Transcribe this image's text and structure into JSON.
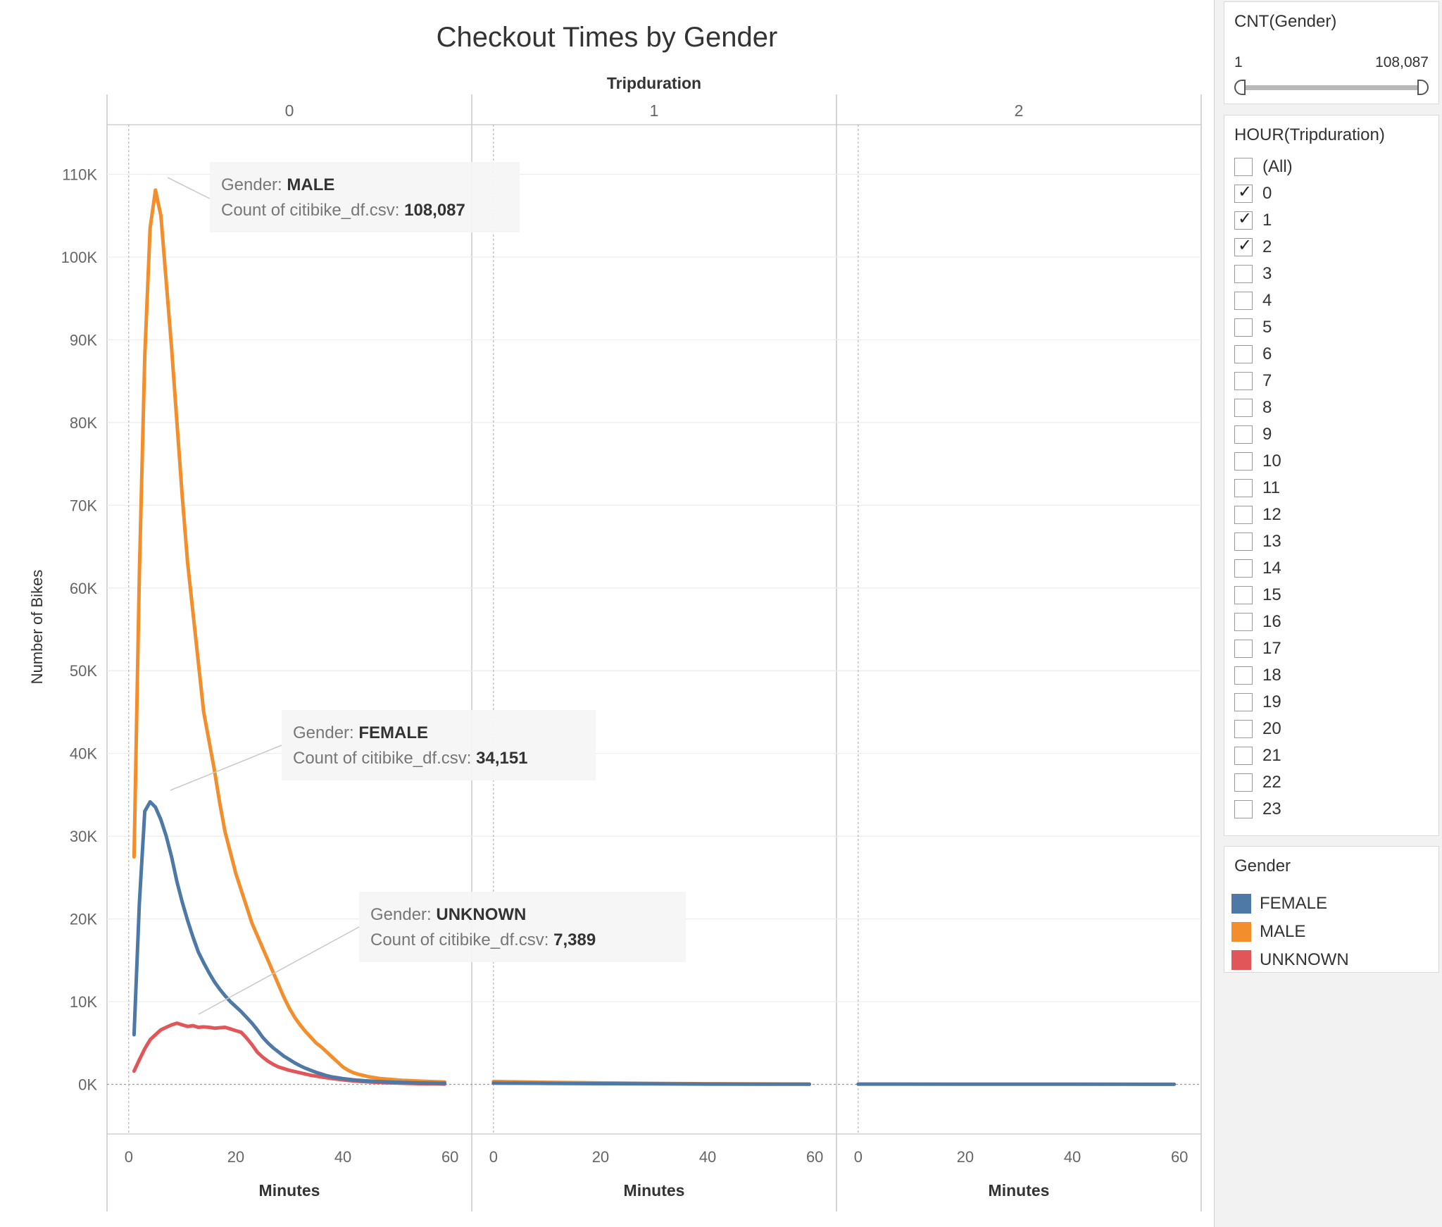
{
  "title": "Checkout Times by Gender",
  "column_header": "Tripduration",
  "yaxis_label": "Number of Bikes",
  "colors": {
    "FEMALE": "#4e79a7",
    "MALE": "#f28e2b",
    "UNKNOWN": "#e15759"
  },
  "chart_data": {
    "type": "line",
    "title": "Checkout Times by Gender",
    "facet_field": "Tripduration",
    "facets": [
      "0",
      "1",
      "2"
    ],
    "xlabel": "Minutes",
    "ylabel": "Number of Bikes",
    "xlim": [
      -3,
      63
    ],
    "xticks": [
      0,
      20,
      40,
      60
    ],
    "ylim": [
      -6000,
      116000
    ],
    "yticks": [
      0,
      10000,
      20000,
      30000,
      40000,
      50000,
      60000,
      70000,
      80000,
      90000,
      100000,
      110000
    ],
    "ytick_labels": [
      "0K",
      "10K",
      "20K",
      "30K",
      "40K",
      "50K",
      "60K",
      "70K",
      "80K",
      "90K",
      "100K",
      "110K"
    ],
    "grid": true,
    "series": [
      {
        "name": "MALE",
        "facet": "0",
        "points": [
          [
            1,
            27500
          ],
          [
            2,
            62000
          ],
          [
            3,
            88000
          ],
          [
            4,
            103500
          ],
          [
            5,
            108087
          ],
          [
            6,
            105000
          ],
          [
            7,
            97000
          ],
          [
            8,
            89000
          ],
          [
            9,
            80000
          ],
          [
            10,
            71000
          ],
          [
            11,
            63000
          ],
          [
            12,
            57000
          ],
          [
            13,
            51000
          ],
          [
            14,
            45000
          ],
          [
            15,
            41500
          ],
          [
            16,
            38000
          ],
          [
            17,
            34000
          ],
          [
            18,
            30500
          ],
          [
            19,
            28000
          ],
          [
            20,
            25500
          ],
          [
            21,
            23500
          ],
          [
            22,
            21500
          ],
          [
            23,
            19500
          ],
          [
            24,
            18000
          ],
          [
            25,
            16500
          ],
          [
            26,
            15000
          ],
          [
            27,
            13500
          ],
          [
            28,
            12000
          ],
          [
            29,
            10500
          ],
          [
            30,
            9200
          ],
          [
            31,
            8100
          ],
          [
            32,
            7200
          ],
          [
            33,
            6400
          ],
          [
            34,
            5700
          ],
          [
            35,
            5000
          ],
          [
            36,
            4500
          ],
          [
            37,
            3900
          ],
          [
            38,
            3300
          ],
          [
            39,
            2700
          ],
          [
            40,
            2100
          ],
          [
            41,
            1700
          ],
          [
            42,
            1400
          ],
          [
            43,
            1200
          ],
          [
            44,
            1050
          ],
          [
            45,
            900
          ],
          [
            46,
            800
          ],
          [
            47,
            700
          ],
          [
            48,
            650
          ],
          [
            49,
            600
          ],
          [
            50,
            550
          ],
          [
            51,
            500
          ],
          [
            52,
            470
          ],
          [
            53,
            440
          ],
          [
            54,
            410
          ],
          [
            55,
            380
          ],
          [
            56,
            350
          ],
          [
            57,
            330
          ],
          [
            58,
            310
          ],
          [
            59,
            290
          ]
        ]
      },
      {
        "name": "FEMALE",
        "facet": "0",
        "points": [
          [
            1,
            6000
          ],
          [
            2,
            22000
          ],
          [
            3,
            33000
          ],
          [
            4,
            34151
          ],
          [
            5,
            33500
          ],
          [
            6,
            32000
          ],
          [
            7,
            30000
          ],
          [
            8,
            27500
          ],
          [
            9,
            24500
          ],
          [
            10,
            22000
          ],
          [
            11,
            19800
          ],
          [
            12,
            17800
          ],
          [
            13,
            16000
          ],
          [
            14,
            14700
          ],
          [
            15,
            13500
          ],
          [
            16,
            12400
          ],
          [
            17,
            11500
          ],
          [
            18,
            10700
          ],
          [
            19,
            10000
          ],
          [
            20,
            9400
          ],
          [
            21,
            8800
          ],
          [
            22,
            8100
          ],
          [
            23,
            7400
          ],
          [
            24,
            6600
          ],
          [
            25,
            5700
          ],
          [
            26,
            5000
          ],
          [
            27,
            4400
          ],
          [
            28,
            3900
          ],
          [
            29,
            3400
          ],
          [
            30,
            3000
          ],
          [
            31,
            2600
          ],
          [
            32,
            2250
          ],
          [
            33,
            1950
          ],
          [
            34,
            1700
          ],
          [
            35,
            1450
          ],
          [
            36,
            1250
          ],
          [
            37,
            1050
          ],
          [
            38,
            900
          ],
          [
            39,
            800
          ],
          [
            40,
            700
          ],
          [
            41,
            620
          ],
          [
            42,
            550
          ],
          [
            43,
            490
          ],
          [
            44,
            440
          ],
          [
            45,
            400
          ],
          [
            46,
            360
          ],
          [
            47,
            330
          ],
          [
            48,
            300
          ],
          [
            49,
            280
          ],
          [
            50,
            260
          ],
          [
            51,
            240
          ],
          [
            52,
            220
          ],
          [
            53,
            200
          ],
          [
            54,
            185
          ],
          [
            55,
            170
          ],
          [
            56,
            160
          ],
          [
            57,
            150
          ],
          [
            58,
            140
          ],
          [
            59,
            130
          ]
        ]
      },
      {
        "name": "UNKNOWN",
        "facet": "0",
        "points": [
          [
            1,
            1600
          ],
          [
            2,
            3000
          ],
          [
            3,
            4300
          ],
          [
            4,
            5400
          ],
          [
            5,
            6000
          ],
          [
            6,
            6600
          ],
          [
            7,
            6900
          ],
          [
            8,
            7200
          ],
          [
            9,
            7389
          ],
          [
            10,
            7200
          ],
          [
            11,
            7000
          ],
          [
            12,
            7100
          ],
          [
            13,
            6900
          ],
          [
            14,
            6950
          ],
          [
            15,
            6900
          ],
          [
            16,
            6800
          ],
          [
            17,
            6850
          ],
          [
            18,
            6900
          ],
          [
            19,
            6700
          ],
          [
            20,
            6500
          ],
          [
            21,
            6300
          ],
          [
            22,
            5600
          ],
          [
            23,
            4800
          ],
          [
            24,
            3900
          ],
          [
            25,
            3300
          ],
          [
            26,
            2800
          ],
          [
            27,
            2400
          ],
          [
            28,
            2100
          ],
          [
            29,
            1900
          ],
          [
            30,
            1700
          ],
          [
            31,
            1550
          ],
          [
            32,
            1400
          ],
          [
            33,
            1250
          ],
          [
            34,
            1100
          ],
          [
            35,
            1000
          ],
          [
            36,
            900
          ],
          [
            37,
            800
          ],
          [
            38,
            700
          ],
          [
            39,
            620
          ],
          [
            40,
            550
          ],
          [
            41,
            480
          ],
          [
            42,
            420
          ],
          [
            43,
            370
          ],
          [
            44,
            330
          ],
          [
            45,
            290
          ],
          [
            46,
            260
          ],
          [
            47,
            230
          ],
          [
            48,
            200
          ],
          [
            49,
            180
          ],
          [
            50,
            160
          ],
          [
            51,
            140
          ],
          [
            52,
            120
          ],
          [
            53,
            100
          ],
          [
            54,
            90
          ],
          [
            55,
            80
          ],
          [
            56,
            70
          ],
          [
            57,
            60
          ],
          [
            58,
            50
          ],
          [
            59,
            40
          ]
        ]
      },
      {
        "name": "MALE",
        "facet": "1",
        "points": [
          [
            0,
            350
          ],
          [
            10,
            250
          ],
          [
            20,
            180
          ],
          [
            30,
            120
          ],
          [
            40,
            80
          ],
          [
            50,
            50
          ],
          [
            59,
            30
          ]
        ]
      },
      {
        "name": "FEMALE",
        "facet": "1",
        "points": [
          [
            0,
            150
          ],
          [
            10,
            120
          ],
          [
            20,
            90
          ],
          [
            30,
            60
          ],
          [
            40,
            40
          ],
          [
            50,
            30
          ],
          [
            59,
            20
          ]
        ]
      },
      {
        "name": "FEMALE",
        "facet": "2",
        "points": [
          [
            0,
            40
          ],
          [
            20,
            30
          ],
          [
            40,
            20
          ],
          [
            59,
            10
          ]
        ]
      }
    ],
    "annotations": [
      {
        "facet": "0",
        "gender": "MALE",
        "count": "108,087",
        "x": 5,
        "y": 108087
      },
      {
        "facet": "0",
        "gender": "FEMALE",
        "count": "34,151",
        "x": 4,
        "y": 34151
      },
      {
        "facet": "0",
        "gender": "UNKNOWN",
        "count": "7,389",
        "x": 9,
        "y": 7389
      }
    ],
    "tooltip_labels": {
      "gender": "Gender:",
      "count": "Count of citibike_df.csv:"
    }
  },
  "filters": {
    "gender_range": {
      "title": "CNT(Gender)",
      "min": "1",
      "max": "108,087"
    },
    "hour": {
      "title": "HOUR(Tripduration)",
      "items": [
        {
          "label": "(All)",
          "checked": false
        },
        {
          "label": "0",
          "checked": true
        },
        {
          "label": "1",
          "checked": true
        },
        {
          "label": "2",
          "checked": true
        },
        {
          "label": "3",
          "checked": false
        },
        {
          "label": "4",
          "checked": false
        },
        {
          "label": "5",
          "checked": false
        },
        {
          "label": "6",
          "checked": false
        },
        {
          "label": "7",
          "checked": false
        },
        {
          "label": "8",
          "checked": false
        },
        {
          "label": "9",
          "checked": false
        },
        {
          "label": "10",
          "checked": false
        },
        {
          "label": "11",
          "checked": false
        },
        {
          "label": "12",
          "checked": false
        },
        {
          "label": "13",
          "checked": false
        },
        {
          "label": "14",
          "checked": false
        },
        {
          "label": "15",
          "checked": false
        },
        {
          "label": "16",
          "checked": false
        },
        {
          "label": "17",
          "checked": false
        },
        {
          "label": "18",
          "checked": false
        },
        {
          "label": "19",
          "checked": false
        },
        {
          "label": "20",
          "checked": false
        },
        {
          "label": "21",
          "checked": false
        },
        {
          "label": "22",
          "checked": false
        },
        {
          "label": "23",
          "checked": false
        }
      ]
    }
  },
  "legend": {
    "title": "Gender",
    "items": [
      {
        "label": "FEMALE",
        "color": "#4e79a7"
      },
      {
        "label": "MALE",
        "color": "#f28e2b"
      },
      {
        "label": "UNKNOWN",
        "color": "#e15759"
      }
    ]
  }
}
